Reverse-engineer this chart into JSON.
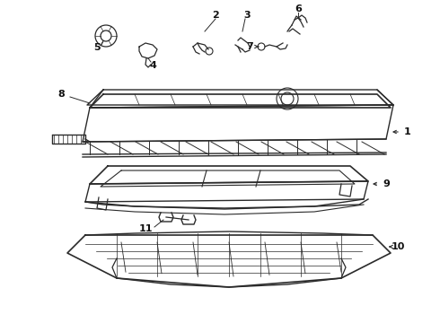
{
  "background_color": "#ffffff",
  "line_color": "#2a2a2a",
  "text_color": "#111111",
  "fig_width": 4.9,
  "fig_height": 3.6,
  "dpi": 100
}
